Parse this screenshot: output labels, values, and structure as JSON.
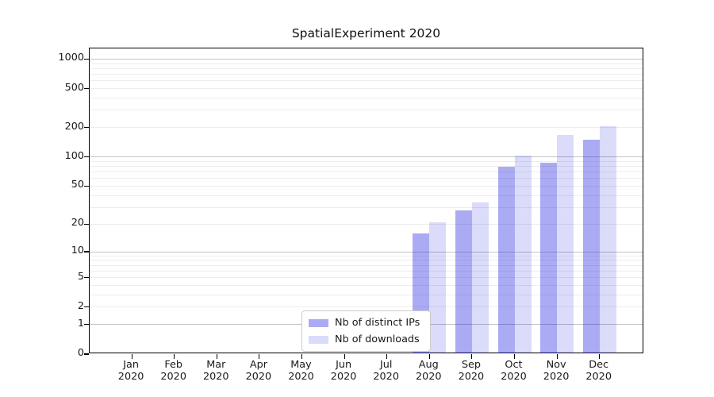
{
  "chart_data": {
    "type": "bar",
    "title": "SpatialExperiment 2020",
    "categories": [
      "Jan 2020",
      "Feb 2020",
      "Mar 2020",
      "Apr 2020",
      "May 2020",
      "Jun 2020",
      "Jul 2020",
      "Aug 2020",
      "Sep 2020",
      "Oct 2020",
      "Nov 2020",
      "Dec 2020"
    ],
    "series": [
      {
        "name": "Nb of distinct IPs",
        "values": [
          0,
          0,
          0,
          0,
          0,
          0,
          0,
          16,
          28,
          79,
          88,
          149
        ],
        "fill": "rgba(10,10,220,0.34)",
        "hex_on_white": "#a8a8f4"
      },
      {
        "name": "Nb of downloads",
        "values": [
          0,
          0,
          0,
          0,
          0,
          0,
          0,
          21,
          34,
          103,
          168,
          207
        ],
        "fill": "rgba(10,10,220,0.145)",
        "hex_on_white": "#dcdcfa"
      }
    ],
    "xlabel": "",
    "ylabel": "",
    "yscale": "log1p",
    "ylim": [
      0,
      1282
    ],
    "y_ticks": [
      0,
      1,
      2,
      5,
      10,
      20,
      50,
      100,
      200,
      500,
      1000
    ],
    "gridlines": {
      "major": [
        1,
        10,
        100,
        1000
      ],
      "minor": [
        2,
        3,
        4,
        5,
        6,
        7,
        8,
        9,
        20,
        30,
        40,
        50,
        60,
        70,
        80,
        90,
        200,
        300,
        400,
        500,
        600,
        700,
        800,
        900
      ]
    },
    "grid": true,
    "legend_position": "inside-bottom-center",
    "legend_entries": [
      "Nb of distinct IPs",
      "Nb of downloads"
    ]
  },
  "colors": {
    "major_grid": "#c4c4c4",
    "minor_grid": "#ededed",
    "axis_frame": "#000000",
    "text": "#191919",
    "legend_border": "#cccccc",
    "background": "#ffffff"
  }
}
